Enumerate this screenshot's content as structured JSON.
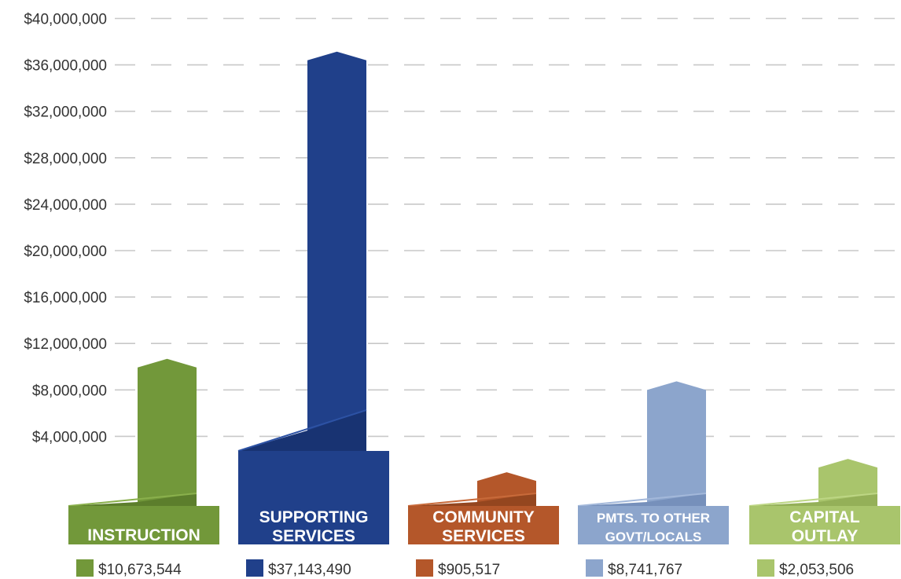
{
  "chart_data": {
    "type": "bar",
    "title": "",
    "xlabel": "",
    "ylabel": "",
    "ylim": [
      0,
      40000000
    ],
    "y_ticks": [
      {
        "value": 4000000,
        "label": "$4,000,000"
      },
      {
        "value": 8000000,
        "label": "$8,000,000"
      },
      {
        "value": 12000000,
        "label": "$12,000,000"
      },
      {
        "value": 16000000,
        "label": "$16,000,000"
      },
      {
        "value": 20000000,
        "label": "$20,000,000"
      },
      {
        "value": 24000000,
        "label": "$24,000,000"
      },
      {
        "value": 28000000,
        "label": "$28,000,000"
      },
      {
        "value": 32000000,
        "label": "$32,000,000"
      },
      {
        "value": 36000000,
        "label": "$36,000,000"
      },
      {
        "value": 40000000,
        "label": "$40,000,000"
      }
    ],
    "grid": true,
    "legend_position": "bottom",
    "categories": [
      {
        "label_lines": [
          "INSTRUCTION"
        ],
        "value": 10673544,
        "value_label": "$10,673,544",
        "color": "#72983a",
        "light": "#8ab04c",
        "dark": "#5c7e2c"
      },
      {
        "label_lines": [
          "SUPPORTING",
          "SERVICES"
        ],
        "value": 37143490,
        "value_label": "$37,143,490",
        "color": "#20408a",
        "light": "#2d52a4",
        "dark": "#183372"
      },
      {
        "label_lines": [
          "COMMUNITY",
          "SERVICES"
        ],
        "value": 905517,
        "value_label": "$905,517",
        "color": "#b4572a",
        "light": "#c86a3a",
        "dark": "#94461f"
      },
      {
        "label_lines": [
          "PMTS. TO OTHER",
          "GOVT/LOCALS"
        ],
        "value": 8741767,
        "value_label": "$8,741,767",
        "color": "#8ca5cc",
        "light": "#a3b8da",
        "dark": "#7690bb"
      },
      {
        "label_lines": [
          "CAPITAL",
          "OUTLAY"
        ],
        "value": 2053506,
        "value_label": "$2,053,506",
        "color": "#a9c56c",
        "light": "#bdd684",
        "dark": "#94b058"
      }
    ]
  }
}
